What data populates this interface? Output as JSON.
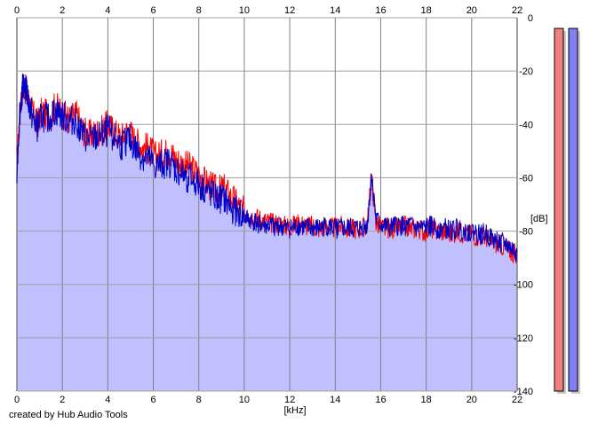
{
  "chart_data": {
    "type": "area",
    "xlabel": "[kHz]",
    "ylabel": "[dB]",
    "xlim": [
      0,
      22
    ],
    "ylim": [
      -140,
      0
    ],
    "x_ticks": [
      0,
      2,
      4,
      6,
      8,
      10,
      12,
      14,
      16,
      18,
      20,
      22
    ],
    "y_ticks": [
      0,
      -20,
      -40,
      -60,
      -80,
      -100,
      -120,
      -140
    ],
    "x_tick_labels": [
      "0",
      "2",
      "4",
      "6",
      "8",
      "10",
      "12",
      "14",
      "16",
      "18",
      "20",
      "22"
    ],
    "y_tick_labels": [
      "0",
      "-20",
      "-40",
      "-60",
      "-80",
      "-100",
      "-120",
      "-140"
    ],
    "grid": true,
    "series": [
      {
        "color": "#ff0000",
        "points": [
          [
            0.0,
            -55
          ],
          [
            0.15,
            -32
          ],
          [
            0.3,
            -25
          ],
          [
            0.5,
            -30
          ],
          [
            0.7,
            -36
          ],
          [
            0.9,
            -40
          ],
          [
            1.1,
            -35
          ],
          [
            1.4,
            -37
          ],
          [
            1.7,
            -33
          ],
          [
            2.0,
            -36
          ],
          [
            2.3,
            -38
          ],
          [
            2.6,
            -36
          ],
          [
            2.9,
            -42
          ],
          [
            3.2,
            -44
          ],
          [
            3.5,
            -43
          ],
          [
            3.8,
            -42
          ],
          [
            4.0,
            -40
          ],
          [
            4.3,
            -43
          ],
          [
            4.6,
            -45
          ],
          [
            4.9,
            -42
          ],
          [
            5.2,
            -46
          ],
          [
            5.5,
            -48
          ],
          [
            5.8,
            -49
          ],
          [
            6.1,
            -52
          ],
          [
            6.4,
            -51
          ],
          [
            6.7,
            -50
          ],
          [
            7.0,
            -53
          ],
          [
            7.3,
            -55
          ],
          [
            7.6,
            -56
          ],
          [
            7.9,
            -58
          ],
          [
            8.2,
            -61
          ],
          [
            8.5,
            -63
          ],
          [
            8.8,
            -65
          ],
          [
            9.1,
            -64
          ],
          [
            9.4,
            -67
          ],
          [
            9.7,
            -70
          ],
          [
            10.0,
            -73
          ],
          [
            10.3,
            -74
          ],
          [
            10.6,
            -75
          ],
          [
            10.9,
            -76
          ],
          [
            11.2,
            -77
          ],
          [
            11.5,
            -77
          ],
          [
            11.8,
            -78
          ],
          [
            12.1,
            -78
          ],
          [
            12.4,
            -77
          ],
          [
            12.7,
            -78
          ],
          [
            13.0,
            -78
          ],
          [
            13.3,
            -79
          ],
          [
            13.6,
            -78
          ],
          [
            13.9,
            -79
          ],
          [
            14.2,
            -78
          ],
          [
            14.5,
            -79
          ],
          [
            14.8,
            -79
          ],
          [
            15.1,
            -79
          ],
          [
            15.4,
            -78
          ],
          [
            15.6,
            -60
          ],
          [
            15.8,
            -77
          ],
          [
            16.1,
            -79
          ],
          [
            16.4,
            -79
          ],
          [
            16.7,
            -79
          ],
          [
            17.0,
            -78
          ],
          [
            17.3,
            -79
          ],
          [
            17.6,
            -79
          ],
          [
            17.9,
            -80
          ],
          [
            18.2,
            -79
          ],
          [
            18.5,
            -80
          ],
          [
            18.8,
            -80
          ],
          [
            19.1,
            -81
          ],
          [
            19.4,
            -80
          ],
          [
            19.7,
            -81
          ],
          [
            20.0,
            -81
          ],
          [
            20.3,
            -82
          ],
          [
            20.6,
            -82
          ],
          [
            20.9,
            -84
          ],
          [
            21.2,
            -85
          ],
          [
            21.5,
            -86
          ],
          [
            21.8,
            -88
          ],
          [
            22.0,
            -89
          ]
        ]
      },
      {
        "color": "#0000c8",
        "points": [
          [
            0.0,
            -56
          ],
          [
            0.15,
            -33
          ],
          [
            0.3,
            -23
          ],
          [
            0.5,
            -31
          ],
          [
            0.7,
            -38
          ],
          [
            0.9,
            -41
          ],
          [
            1.1,
            -37
          ],
          [
            1.4,
            -38
          ],
          [
            1.7,
            -35
          ],
          [
            2.0,
            -37
          ],
          [
            2.3,
            -39
          ],
          [
            2.6,
            -38
          ],
          [
            2.9,
            -44
          ],
          [
            3.2,
            -46
          ],
          [
            3.5,
            -45
          ],
          [
            3.8,
            -44
          ],
          [
            4.0,
            -42
          ],
          [
            4.3,
            -45
          ],
          [
            4.6,
            -48
          ],
          [
            4.9,
            -45
          ],
          [
            5.2,
            -49
          ],
          [
            5.5,
            -52
          ],
          [
            5.8,
            -53
          ],
          [
            6.1,
            -56
          ],
          [
            6.4,
            -55
          ],
          [
            6.7,
            -54
          ],
          [
            7.0,
            -57
          ],
          [
            7.3,
            -59
          ],
          [
            7.6,
            -60
          ],
          [
            7.9,
            -62
          ],
          [
            8.2,
            -64
          ],
          [
            8.5,
            -66
          ],
          [
            8.8,
            -68
          ],
          [
            9.1,
            -68
          ],
          [
            9.4,
            -71
          ],
          [
            9.7,
            -73
          ],
          [
            10.0,
            -75
          ],
          [
            10.3,
            -76
          ],
          [
            10.6,
            -77
          ],
          [
            10.9,
            -78
          ],
          [
            11.2,
            -78
          ],
          [
            11.5,
            -78
          ],
          [
            11.8,
            -79
          ],
          [
            12.1,
            -79
          ],
          [
            12.4,
            -78
          ],
          [
            12.7,
            -79
          ],
          [
            13.0,
            -79
          ],
          [
            13.3,
            -79
          ],
          [
            13.6,
            -78
          ],
          [
            13.9,
            -79
          ],
          [
            14.2,
            -79
          ],
          [
            14.5,
            -79
          ],
          [
            14.8,
            -79
          ],
          [
            15.1,
            -79
          ],
          [
            15.4,
            -78
          ],
          [
            15.6,
            -59
          ],
          [
            15.8,
            -76
          ],
          [
            16.1,
            -78
          ],
          [
            16.4,
            -79
          ],
          [
            16.7,
            -78
          ],
          [
            17.0,
            -78
          ],
          [
            17.3,
            -78
          ],
          [
            17.6,
            -79
          ],
          [
            17.9,
            -79
          ],
          [
            18.2,
            -78
          ],
          [
            18.5,
            -79
          ],
          [
            18.8,
            -79
          ],
          [
            19.1,
            -80
          ],
          [
            19.4,
            -79
          ],
          [
            19.7,
            -80
          ],
          [
            20.0,
            -80
          ],
          [
            20.3,
            -81
          ],
          [
            20.6,
            -81
          ],
          [
            20.9,
            -83
          ],
          [
            21.2,
            -84
          ],
          [
            21.5,
            -85
          ],
          [
            21.8,
            -87
          ],
          [
            22.0,
            -88
          ]
        ]
      }
    ],
    "fill_color": "#c0c0ff",
    "level_meters": [
      {
        "color": "#f08080",
        "top_db": -4
      },
      {
        "color": "#8080f0",
        "top_db": -4
      }
    ]
  },
  "footer": {
    "credit": "created by Hub Audio Tools"
  }
}
